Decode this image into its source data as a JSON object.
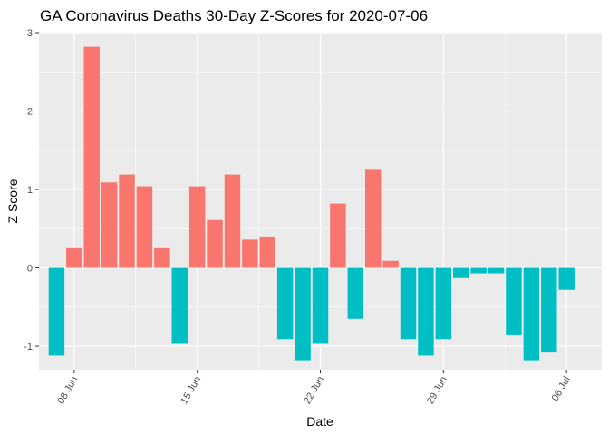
{
  "chart_data": {
    "type": "bar",
    "title": "GA Coronavirus Deaths 30-Day Z-Scores for 2020-07-06",
    "xlabel": "Date",
    "ylabel": "Z Score",
    "x_tick_labels": [
      "08 Jun",
      "15 Jun",
      "22 Jun",
      "29 Jun",
      "06 Jul"
    ],
    "y_ticks": [
      -1,
      0,
      1,
      2,
      3
    ],
    "ylim": [
      -1.3,
      3.0
    ],
    "xlim": [
      "2020-06-06",
      "2020-07-08"
    ],
    "grid": true,
    "legend": "none",
    "colors": {
      "positive": "#F8766D",
      "negative": "#00BFC4",
      "panel": "#EBEBEB",
      "gridline": "#FFFFFF"
    },
    "categories": [
      "2020-06-07",
      "2020-06-08",
      "2020-06-09",
      "2020-06-10",
      "2020-06-11",
      "2020-06-12",
      "2020-06-13",
      "2020-06-14",
      "2020-06-15",
      "2020-06-16",
      "2020-06-17",
      "2020-06-18",
      "2020-06-19",
      "2020-06-20",
      "2020-06-21",
      "2020-06-22",
      "2020-06-23",
      "2020-06-24",
      "2020-06-25",
      "2020-06-26",
      "2020-06-27",
      "2020-06-28",
      "2020-06-29",
      "2020-06-30",
      "2020-07-01",
      "2020-07-02",
      "2020-07-03",
      "2020-07-04",
      "2020-07-05",
      "2020-07-06"
    ],
    "values": [
      -1.12,
      0.25,
      2.82,
      1.09,
      1.19,
      1.04,
      0.25,
      -0.97,
      1.04,
      0.61,
      1.19,
      0.36,
      0.4,
      -0.91,
      -1.18,
      -0.97,
      0.82,
      -0.65,
      1.25,
      0.09,
      -0.91,
      -1.12,
      -0.91,
      -0.13,
      -0.07,
      -0.07,
      -0.86,
      -1.18,
      -1.07,
      -0.28
    ]
  }
}
